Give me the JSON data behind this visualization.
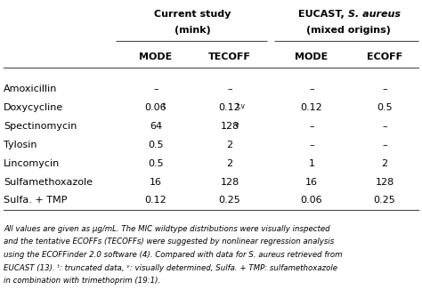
{
  "col_headers": [
    "MODE",
    "TECOFF",
    "MODE",
    "ECOFF"
  ],
  "row_labels": [
    "Amoxicillin",
    "Doxycycline",
    "Spectinomycin",
    "Tylosin",
    "Lincomycin",
    "Sulfamethoxazole",
    "Sulfa. + TMP"
  ],
  "table_data": [
    [
      "–",
      "–",
      "–",
      "–"
    ],
    [
      "0.06",
      "0.12",
      "0.12",
      "0.5"
    ],
    [
      "64",
      "128",
      "–",
      "–"
    ],
    [
      "0.5",
      "2",
      "–",
      "–"
    ],
    [
      "0.5",
      "2",
      "1",
      "2"
    ],
    [
      "16",
      "128",
      "16",
      "128"
    ],
    [
      "0.12",
      "0.25",
      "0.06",
      "0.25"
    ]
  ],
  "superscripts": [
    [
      null,
      null,
      null,
      null
    ],
    [
      "t",
      "t,v",
      null,
      null
    ],
    [
      null,
      "v",
      null,
      null
    ],
    [
      null,
      null,
      null,
      null
    ],
    [
      null,
      null,
      null,
      null
    ],
    [
      null,
      null,
      null,
      null
    ],
    [
      null,
      null,
      null,
      null
    ]
  ],
  "footnote_line1": "All values are given as μg/mL. The MIC wildtype distributions were visually inspected",
  "footnote_line2": "and the tentative ECOFFs (TECOFFs) were suggested by nonlinear regression analysis",
  "footnote_line3": "using the ECOFFinder 2.0 software (4). Compared with data for S. aureus retrieved from",
  "footnote_line4": "EUCAST (13). ᵗ: truncated data, ᵛ: visually determined, Sulfa. + TMP: sulfamethoxazole",
  "footnote_line5": "in combination with trimethoprim (19:1).",
  "bg_color": "#ffffff",
  "text_color": "#000000",
  "line_color": "#4a4a4a"
}
